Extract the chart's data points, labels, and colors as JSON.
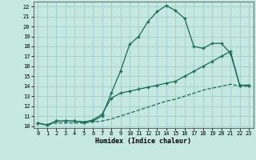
{
  "xlabel": "Humidex (Indice chaleur)",
  "background_color": "#c5e8e0",
  "grid_color": "#a0cccc",
  "line_color": "#1a6b5a",
  "xlim_min": -0.5,
  "xlim_max": 23.5,
  "ylim_min": 9.8,
  "ylim_max": 22.5,
  "yticks": [
    10,
    11,
    12,
    13,
    14,
    15,
    16,
    17,
    18,
    19,
    20,
    21,
    22
  ],
  "xticks": [
    0,
    1,
    2,
    3,
    4,
    5,
    6,
    7,
    8,
    9,
    10,
    11,
    12,
    13,
    14,
    15,
    16,
    17,
    18,
    19,
    20,
    21,
    22,
    23
  ],
  "curve1_x": [
    0,
    1,
    2,
    3,
    4,
    5,
    6,
    7,
    8,
    9,
    10,
    11,
    12,
    13,
    14,
    15,
    16,
    17,
    18,
    19,
    20,
    21,
    22,
    23
  ],
  "curve1_y": [
    10.3,
    10.1,
    10.5,
    10.5,
    10.5,
    10.4,
    10.5,
    11.0,
    13.3,
    15.5,
    18.2,
    19.0,
    20.5,
    21.5,
    22.1,
    21.6,
    20.8,
    18.0,
    17.8,
    18.3,
    18.3,
    17.3,
    14.1,
    14.1
  ],
  "curve2_x": [
    0,
    1,
    2,
    3,
    4,
    5,
    6,
    7,
    8,
    9,
    10,
    11,
    12,
    13,
    14,
    15,
    16,
    17,
    18,
    19,
    20,
    21,
    22,
    23
  ],
  "curve2_y": [
    10.3,
    10.1,
    10.5,
    10.5,
    10.5,
    10.4,
    10.6,
    11.2,
    12.8,
    13.3,
    13.5,
    13.7,
    13.9,
    14.1,
    14.3,
    14.5,
    15.0,
    15.5,
    16.0,
    16.5,
    17.0,
    17.5,
    14.1,
    14.1
  ],
  "curve3_x": [
    0,
    1,
    2,
    3,
    4,
    5,
    6,
    7,
    8,
    9,
    10,
    11,
    12,
    13,
    14,
    15,
    16,
    17,
    18,
    19,
    20,
    21,
    22,
    23
  ],
  "curve3_y": [
    10.3,
    10.1,
    10.3,
    10.3,
    10.3,
    10.3,
    10.4,
    10.5,
    10.7,
    11.0,
    11.3,
    11.6,
    11.9,
    12.2,
    12.5,
    12.7,
    13.0,
    13.3,
    13.6,
    13.8,
    14.0,
    14.2,
    14.0,
    14.0
  ]
}
